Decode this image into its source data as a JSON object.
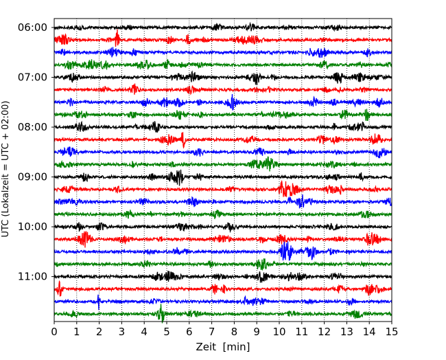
{
  "chart_data": {
    "type": "line",
    "subtype": "seismogram-helicorder",
    "xlabel": "Zeit  [min]",
    "ylabel": "UTC (Lokalzeit = UTC + 02:00)",
    "xlim": [
      0,
      15
    ],
    "x_ticks": [
      "0",
      "1",
      "2",
      "3",
      "4",
      "5",
      "6",
      "7",
      "8",
      "9",
      "10",
      "11",
      "12",
      "13",
      "14",
      "15"
    ],
    "vertical_grid": "dotted, every 1 min",
    "trace_interval_min": 15,
    "y_tick_labels": [
      "06:00",
      "07:00",
      "08:00",
      "09:00",
      "10:00",
      "11:00"
    ],
    "trace_color_cycle": [
      "#000000",
      "#ff0000",
      "#0000ff",
      "#008000"
    ],
    "trace_count": 24,
    "trace_start_times": [
      "06:00",
      "06:15",
      "06:30",
      "06:45",
      "07:00",
      "07:15",
      "07:30",
      "07:45",
      "08:00",
      "08:15",
      "08:30",
      "08:45",
      "09:00",
      "09:15",
      "09:30",
      "09:45",
      "10:00",
      "10:15",
      "10:30",
      "10:45",
      "11:00",
      "11:15",
      "11:30",
      "11:45"
    ]
  }
}
